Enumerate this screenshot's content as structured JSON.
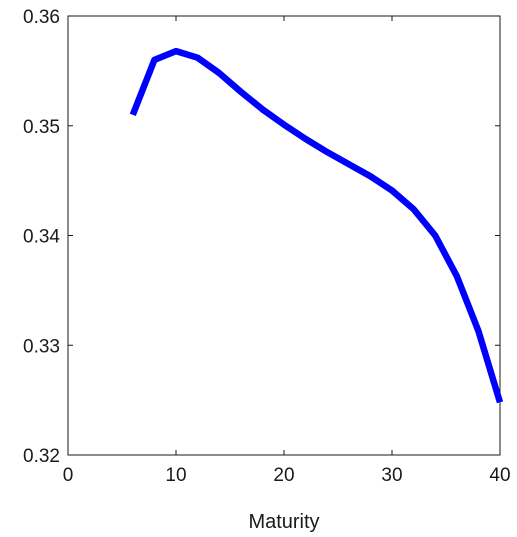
{
  "chart_data": {
    "type": "line",
    "title": "",
    "xlabel": "Maturity",
    "ylabel": "",
    "xlim": [
      0,
      40
    ],
    "ylim": [
      0.32,
      0.36
    ],
    "xticks": [
      "0",
      "10",
      "20",
      "30",
      "40"
    ],
    "yticks": [
      "0.32",
      "0.33",
      "0.34",
      "0.35",
      "0.36"
    ],
    "grid": false,
    "legend": "none",
    "series": [
      {
        "color": "#0000ff",
        "x": [
          6,
          8,
          10,
          12,
          14,
          16,
          18,
          20,
          22,
          24,
          26,
          28,
          30,
          32,
          34,
          36,
          38,
          40
        ],
        "y": [
          0.351,
          0.356,
          0.3568,
          0.3562,
          0.3548,
          0.3531,
          0.3515,
          0.3501,
          0.3488,
          0.3476,
          0.3465,
          0.3454,
          0.3441,
          0.3424,
          0.34,
          0.3363,
          0.3313,
          0.3248
        ]
      }
    ]
  }
}
